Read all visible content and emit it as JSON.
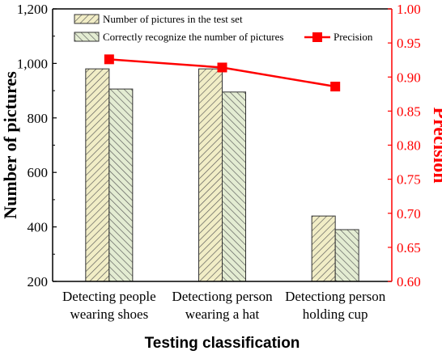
{
  "chart_data": {
    "type": "bar",
    "categories": [
      [
        "Detecting people",
        "wearing shoes"
      ],
      [
        "Detectiong person",
        "wearing a hat"
      ],
      [
        "Detectiong person",
        "holding cup"
      ]
    ],
    "series": [
      {
        "name": "Number of pictures in the test set",
        "values": [
          980,
          980,
          440
        ],
        "pattern": "diag-right",
        "fill": "#f1edc6"
      },
      {
        "name": "Correctly recognize the number of pictures",
        "values": [
          906,
          895,
          390
        ],
        "pattern": "diag-left",
        "fill": "#e3ecd2"
      }
    ],
    "line_series": {
      "name": "Precision",
      "values": [
        0.926,
        0.914,
        0.886
      ],
      "color": "#ff0000"
    },
    "xlabel": "Testing classification",
    "ylabel": "Number of pictures",
    "ylabel_right": "Precision",
    "ylim": [
      200,
      1200
    ],
    "yticks": [
      "200",
      "400",
      "600",
      "800",
      "1,000",
      "1,200"
    ],
    "ylim_right": [
      0.6,
      1.0
    ],
    "yticks_right": [
      "0.60",
      "0.65",
      "0.70",
      "0.75",
      "0.80",
      "0.85",
      "0.90",
      "0.95",
      "1.00"
    ],
    "legend_placement": "top",
    "grid": false
  }
}
